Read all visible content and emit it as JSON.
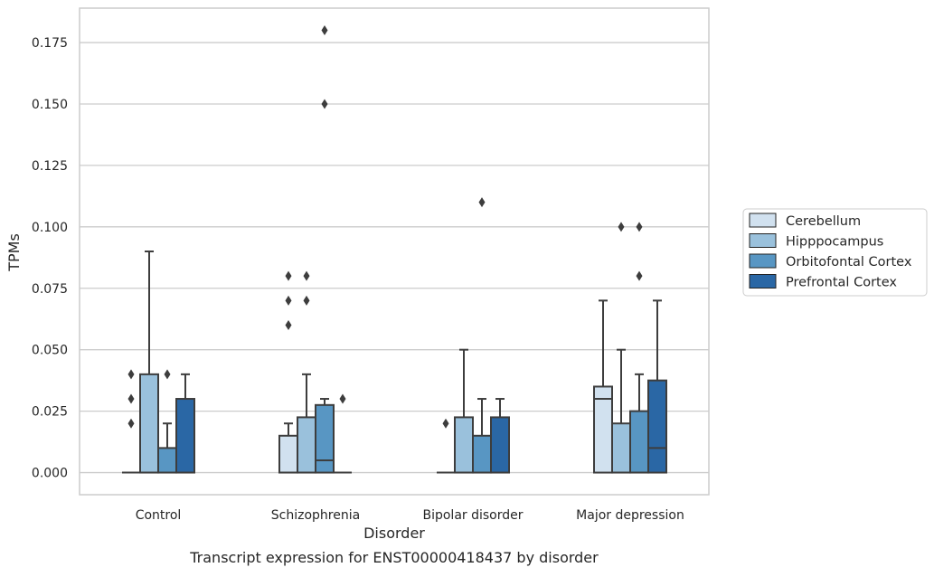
{
  "chart_data": {
    "type": "box",
    "title": "",
    "caption": "Transcript expression for ENST00000418437 by disorder",
    "xlabel": "Disorder",
    "ylabel": "TPMs",
    "categories": [
      "Control",
      "Schizophrenia",
      "Bipolar disorder",
      "Major depression"
    ],
    "ylim": [
      -0.009,
      0.189
    ],
    "yticks": [
      "0.000",
      "0.025",
      "0.050",
      "0.075",
      "0.100",
      "0.125",
      "0.150",
      "0.175"
    ],
    "ytick_values": [
      0,
      0.025,
      0.05,
      0.075,
      0.1,
      0.125,
      0.15,
      0.175
    ],
    "grid": "horizontal",
    "legend_position": "right",
    "series": [
      {
        "name": "Cerebellum",
        "color": "#d1e1ef",
        "boxes": [
          {
            "whislo": 0,
            "q1": 0,
            "med": 0,
            "q3": 0,
            "whishi": 0,
            "fliers": [
              0.02,
              0.03,
              0.04
            ]
          },
          {
            "whislo": 0,
            "q1": 0,
            "med": 0,
            "q3": 0.015,
            "whishi": 0.02,
            "fliers": [
              0.06,
              0.07,
              0.08
            ]
          },
          {
            "whislo": 0,
            "q1": 0,
            "med": 0,
            "q3": 0,
            "whishi": 0,
            "fliers": [
              0.02
            ]
          },
          {
            "whislo": 0,
            "q1": 0,
            "med": 0.03,
            "q3": 0.035,
            "whishi": 0.07,
            "fliers": []
          }
        ]
      },
      {
        "name": "Hipppocampus",
        "color": "#9ac1dc",
        "boxes": [
          {
            "whislo": 0,
            "q1": 0,
            "med": 0,
            "q3": 0.04,
            "whishi": 0.09,
            "fliers": []
          },
          {
            "whislo": 0,
            "q1": 0,
            "med": 0,
            "q3": 0.0225,
            "whishi": 0.04,
            "fliers": [
              0.07,
              0.08
            ]
          },
          {
            "whislo": 0,
            "q1": 0,
            "med": 0,
            "q3": 0.0225,
            "whishi": 0.05,
            "fliers": []
          },
          {
            "whislo": 0,
            "q1": 0,
            "med": 0,
            "q3": 0.02,
            "whishi": 0.05,
            "fliers": [
              0.1
            ]
          }
        ]
      },
      {
        "name": "Orbitofontal Cortex",
        "color": "#5896c3",
        "boxes": [
          {
            "whislo": 0,
            "q1": 0,
            "med": 0,
            "q3": 0.01,
            "whishi": 0.02,
            "fliers": [
              0.04
            ]
          },
          {
            "whislo": 0,
            "q1": 0,
            "med": 0.005,
            "q3": 0.0275,
            "whishi": 0.03,
            "fliers": [
              0.15,
              0.18
            ]
          },
          {
            "whislo": 0,
            "q1": 0,
            "med": 0,
            "q3": 0.015,
            "whishi": 0.03,
            "fliers": [
              0.11
            ]
          },
          {
            "whislo": 0,
            "q1": 0,
            "med": 0,
            "q3": 0.025,
            "whishi": 0.04,
            "fliers": [
              0.08,
              0.1
            ]
          }
        ]
      },
      {
        "name": "Prefrontal Cortex",
        "color": "#2a67a5",
        "boxes": [
          {
            "whislo": 0,
            "q1": 0,
            "med": 0,
            "q3": 0.03,
            "whishi": 0.04,
            "fliers": []
          },
          {
            "whislo": 0,
            "q1": 0,
            "med": 0,
            "q3": 0,
            "whishi": 0,
            "fliers": [
              0.03
            ]
          },
          {
            "whislo": 0,
            "q1": 0,
            "med": 0,
            "q3": 0.0225,
            "whishi": 0.03,
            "fliers": []
          },
          {
            "whislo": 0,
            "q1": 0,
            "med": 0.01,
            "q3": 0.0375,
            "whishi": 0.07,
            "fliers": []
          }
        ]
      }
    ]
  }
}
